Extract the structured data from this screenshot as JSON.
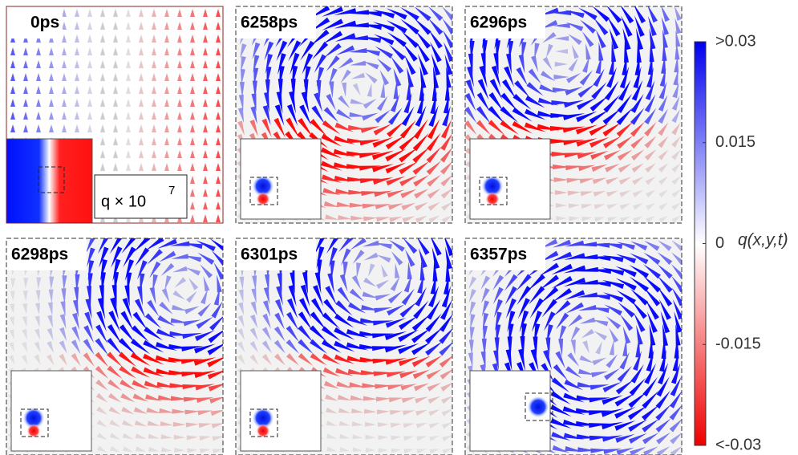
{
  "panels": [
    {
      "label": "0ps"
    },
    {
      "label": "6258ps"
    },
    {
      "label": "6296ps"
    },
    {
      "label": "6298ps"
    },
    {
      "label": "6301ps"
    },
    {
      "label": "6357ps"
    }
  ],
  "inset_caption": {
    "text": "q × 10",
    "exponent": "7"
  },
  "colorbar": {
    "label": "q(x,y,t)",
    "lim": [
      -0.03,
      0.03
    ],
    "ticks": [
      {
        "value": 0.03,
        "label": ">0.03"
      },
      0.015,
      0,
      -0.015,
      {
        "value": -0.03,
        "label": "<-0.03"
      }
    ]
  }
}
